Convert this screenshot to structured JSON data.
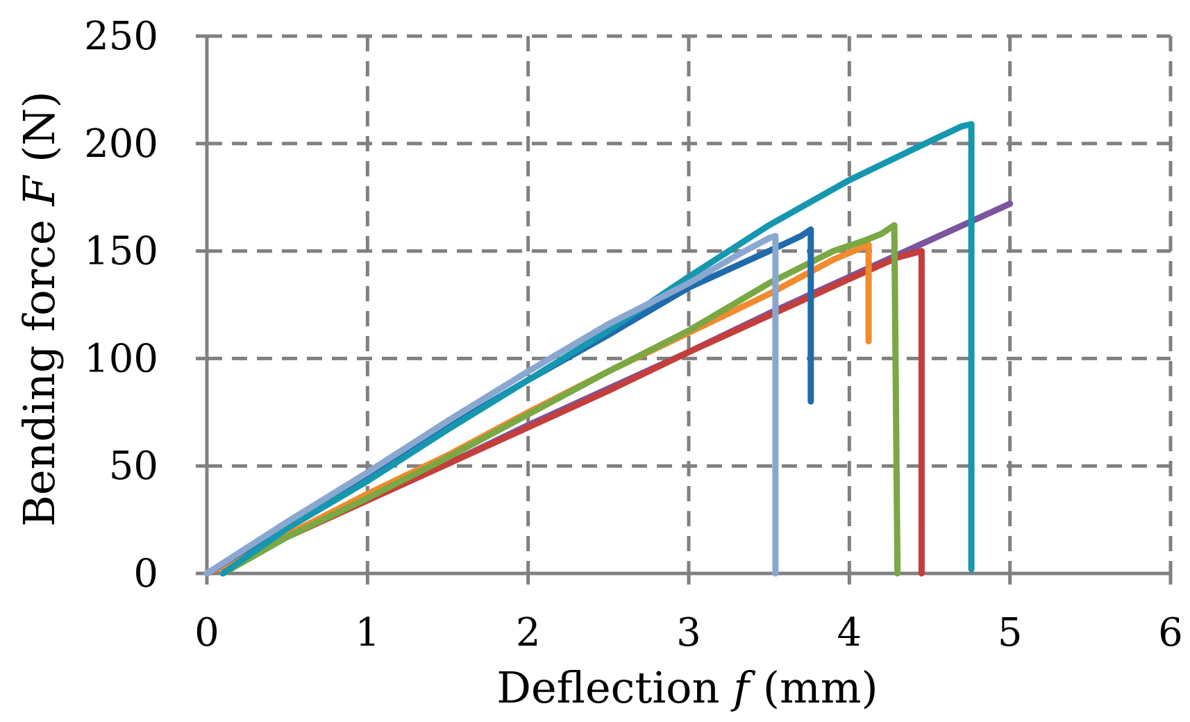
{
  "chart_data": {
    "type": "line",
    "xlabel_parts": {
      "pre": "Deflection ",
      "var": "f",
      "post": " (mm)"
    },
    "ylabel_parts": {
      "pre": "Bending force ",
      "var": "F",
      "post": " (N)"
    },
    "xlim": [
      0,
      6
    ],
    "ylim": [
      0,
      250
    ],
    "xticks": [
      0,
      1,
      2,
      3,
      4,
      5,
      6
    ],
    "yticks": [
      0,
      50,
      100,
      150,
      200,
      250
    ],
    "grid": true,
    "series": [
      {
        "color": "#7b559d",
        "points": [
          [
            0,
            0
          ],
          [
            0.5,
            17
          ],
          [
            1,
            34
          ],
          [
            1.5,
            51
          ],
          [
            2,
            69
          ],
          [
            2.5,
            86
          ],
          [
            3,
            103
          ],
          [
            3.5,
            121
          ],
          [
            4,
            138
          ],
          [
            4.5,
            155
          ],
          [
            5,
            172
          ]
        ]
      },
      {
        "color": "#c43e3b",
        "points": [
          [
            0,
            0
          ],
          [
            0.5,
            17
          ],
          [
            1,
            34
          ],
          [
            1.5,
            51
          ],
          [
            2,
            68
          ],
          [
            2.5,
            85
          ],
          [
            3,
            103
          ],
          [
            3.5,
            120
          ],
          [
            4,
            137
          ],
          [
            4.3,
            147
          ],
          [
            4.45,
            150
          ],
          [
            4.45,
            0
          ]
        ]
      },
      {
        "color": "#f28a2e",
        "points": [
          [
            0,
            0
          ],
          [
            0.5,
            18
          ],
          [
            1,
            37
          ],
          [
            1.5,
            55
          ],
          [
            2,
            75
          ],
          [
            2.5,
            94
          ],
          [
            3,
            112
          ],
          [
            3.5,
            130
          ],
          [
            3.9,
            146
          ],
          [
            4.12,
            153
          ],
          [
            4.12,
            108
          ]
        ]
      },
      {
        "color": "#7aa844",
        "points": [
          [
            0.1,
            0
          ],
          [
            0.5,
            17
          ],
          [
            1,
            35
          ],
          [
            1.5,
            54
          ],
          [
            2,
            74
          ],
          [
            2.5,
            94
          ],
          [
            3,
            113
          ],
          [
            3.5,
            135
          ],
          [
            3.9,
            150
          ],
          [
            4.1,
            155
          ],
          [
            4.2,
            158
          ],
          [
            4.28,
            162
          ],
          [
            4.3,
            0
          ]
        ]
      },
      {
        "color": "#1f6bab",
        "points": [
          [
            0,
            0
          ],
          [
            0.5,
            23
          ],
          [
            1,
            46
          ],
          [
            1.5,
            68
          ],
          [
            2,
            90
          ],
          [
            2.5,
            111
          ],
          [
            3,
            133
          ],
          [
            3.5,
            150
          ],
          [
            3.7,
            157
          ],
          [
            3.76,
            160
          ],
          [
            3.76,
            80
          ]
        ]
      },
      {
        "color": "#1697b0",
        "points": [
          [
            0.1,
            0
          ],
          [
            0.5,
            21
          ],
          [
            1,
            43
          ],
          [
            1.5,
            67
          ],
          [
            2,
            90
          ],
          [
            2.5,
            113
          ],
          [
            3,
            138
          ],
          [
            3.5,
            162
          ],
          [
            4,
            183
          ],
          [
            4.5,
            201
          ],
          [
            4.7,
            208
          ],
          [
            4.76,
            209
          ],
          [
            4.76,
            2
          ]
        ]
      },
      {
        "color": "#8aa8cf",
        "points": [
          [
            0,
            0
          ],
          [
            0.5,
            24
          ],
          [
            1,
            47
          ],
          [
            1.5,
            71
          ],
          [
            2,
            94
          ],
          [
            2.5,
            116
          ],
          [
            3,
            135
          ],
          [
            3.3,
            148
          ],
          [
            3.5,
            156
          ],
          [
            3.54,
            157
          ],
          [
            3.54,
            0
          ]
        ]
      }
    ]
  }
}
